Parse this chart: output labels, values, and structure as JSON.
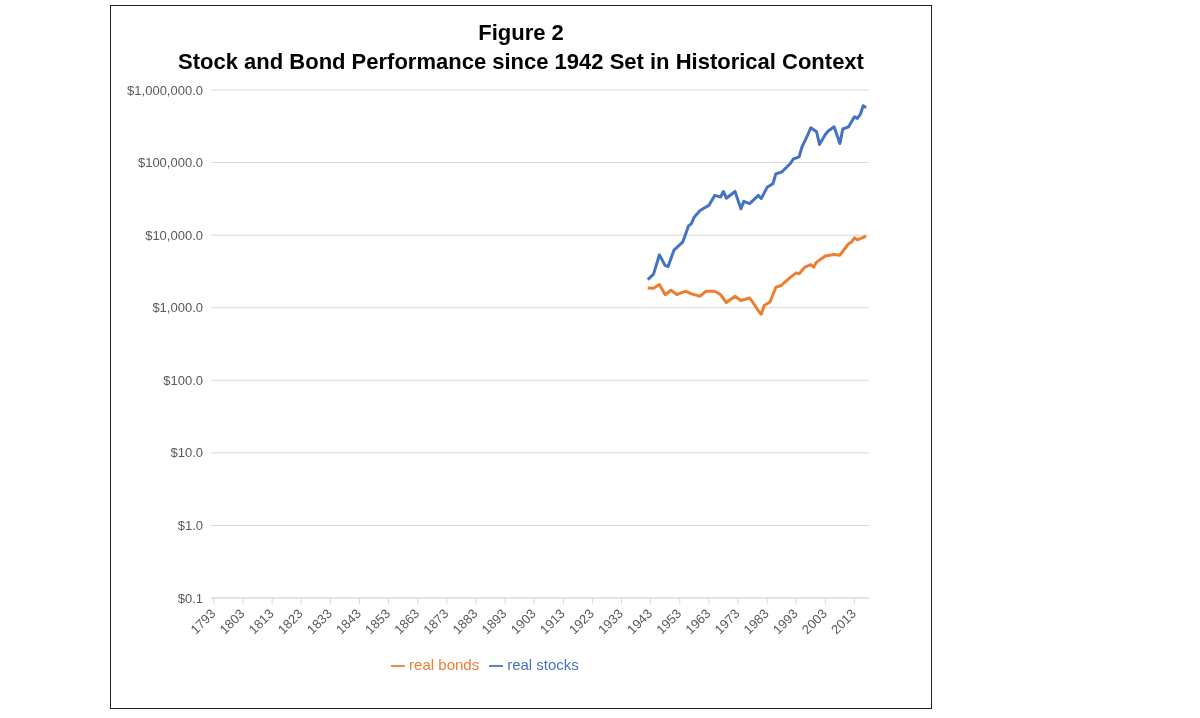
{
  "chart_data": {
    "type": "line",
    "title": "Figure 2",
    "subtitle": "Stock and Bond Performance since 1942 Set in Historical Context",
    "xlim": [
      1792,
      2018
    ],
    "xticks": [
      1793,
      1803,
      1813,
      1823,
      1833,
      1843,
      1853,
      1863,
      1873,
      1883,
      1893,
      1903,
      1913,
      1923,
      1933,
      1943,
      1953,
      1963,
      1973,
      1983,
      1993,
      2003,
      2013
    ],
    "ylim": [
      0.1,
      1000000
    ],
    "log": true,
    "yticks": [
      {
        "value": 0.1,
        "label": "$0.1"
      },
      {
        "value": 1,
        "label": "$1.0"
      },
      {
        "value": 10,
        "label": "$10.0"
      },
      {
        "value": 100,
        "label": "$100.0"
      },
      {
        "value": 1000,
        "label": "$1,000.0"
      },
      {
        "value": 10000,
        "label": "$10,000.0"
      },
      {
        "value": 100000,
        "label": "$100,000.0"
      },
      {
        "value": 1000000,
        "label": "$1,000,000.0"
      }
    ],
    "grid": "y",
    "legend": "bottom",
    "marker": "none",
    "series": [
      {
        "name": "real stocks",
        "color": "#4472c4",
        "x": [
          1942,
          1944,
          1946,
          1948,
          1949,
          1951,
          1954,
          1956,
          1957,
          1958,
          1960,
          1962,
          1963,
          1965,
          1967,
          1968,
          1969,
          1972,
          1974,
          1975,
          1977,
          1980,
          1981,
          1983,
          1985,
          1986,
          1988,
          1989,
          1991,
          1992,
          1994,
          1995,
          1997,
          1998,
          2000,
          2001,
          2003,
          2004,
          2006,
          2008,
          2009,
          2011,
          2013,
          2014,
          2015,
          2016,
          2017
        ],
        "values": [
          2440,
          2900,
          5350,
          3800,
          3700,
          6200,
          8000,
          13400,
          14400,
          17800,
          21900,
          24400,
          25700,
          35300,
          33600,
          40000,
          32300,
          40000,
          23000,
          29200,
          27200,
          35300,
          31900,
          45600,
          51000,
          70000,
          74000,
          81000,
          97000,
          112000,
          120000,
          165000,
          242000,
          302000,
          266000,
          178000,
          244000,
          272000,
          311000,
          183000,
          290000,
          311000,
          428000,
          406000,
          460000,
          607000,
          570000
        ]
      },
      {
        "name": "real bonds",
        "color": "#ed7d31",
        "x": [
          1942,
          1944,
          1946,
          1948,
          1950,
          1952,
          1955,
          1957,
          1960,
          1962,
          1965,
          1967,
          1969,
          1972,
          1974,
          1977,
          1978,
          1980,
          1981,
          1982,
          1984,
          1986,
          1988,
          1989,
          1991,
          1993,
          1994,
          1996,
          1998,
          1999,
          2000,
          2003,
          2006,
          2008,
          2009,
          2011,
          2012,
          2013,
          2014,
          2016,
          2017
        ],
        "values": [
          1870,
          1850,
          2090,
          1510,
          1740,
          1520,
          1690,
          1550,
          1440,
          1690,
          1690,
          1520,
          1180,
          1440,
          1260,
          1360,
          1200,
          910,
          815,
          1070,
          1200,
          1910,
          2040,
          2230,
          2620,
          3020,
          2930,
          3630,
          3920,
          3630,
          4250,
          5150,
          5400,
          5300,
          6000,
          7600,
          8000,
          9200,
          8600,
          9300,
          9700
        ]
      }
    ]
  }
}
